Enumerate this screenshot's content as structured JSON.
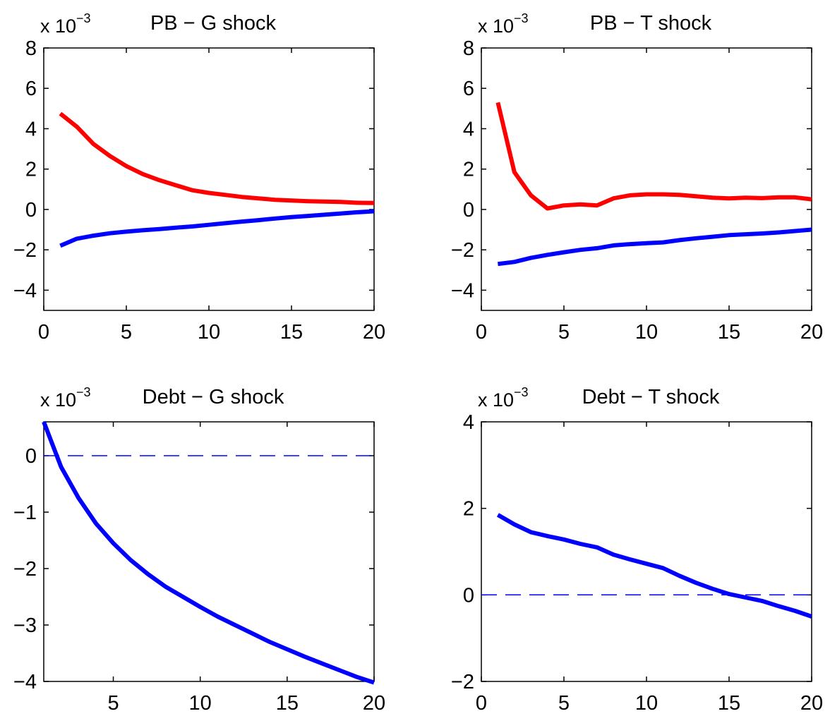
{
  "chart_data": [
    {
      "type": "line",
      "title": "PB − G shock",
      "scale_base": "x 10",
      "scale_exp": "−3",
      "xlabel": "",
      "ylabel": "",
      "xlim": [
        0,
        20
      ],
      "ylim": [
        -5,
        8
      ],
      "xticks": [
        0,
        5,
        10,
        15,
        20
      ],
      "xtick_labels": [
        "0",
        "5",
        "10",
        "15",
        "20"
      ],
      "yticks": [
        -4,
        -2,
        0,
        2,
        4,
        6,
        8
      ],
      "ytick_labels": [
        "−4",
        "−2",
        "0",
        "2",
        "4",
        "6",
        "8"
      ],
      "grid": false,
      "x": [
        1,
        2,
        3,
        4,
        5,
        6,
        7,
        8,
        9,
        10,
        11,
        12,
        13,
        14,
        15,
        16,
        17,
        18,
        19,
        20
      ],
      "series": [
        {
          "color": "#ff0000",
          "style": "solid",
          "values": [
            4.75,
            4.1,
            3.25,
            2.65,
            2.15,
            1.75,
            1.45,
            1.2,
            0.95,
            0.82,
            0.72,
            0.62,
            0.55,
            0.48,
            0.44,
            0.41,
            0.39,
            0.37,
            0.33,
            0.32
          ]
        },
        {
          "color": "#0000ff",
          "style": "solid",
          "values": [
            -1.8,
            -1.45,
            -1.3,
            -1.18,
            -1.1,
            -1.03,
            -0.97,
            -0.9,
            -0.84,
            -0.76,
            -0.68,
            -0.6,
            -0.53,
            -0.45,
            -0.38,
            -0.32,
            -0.26,
            -0.2,
            -0.14,
            -0.09
          ]
        }
      ]
    },
    {
      "type": "line",
      "title": "PB − T shock",
      "scale_base": "x 10",
      "scale_exp": "−3",
      "xlabel": "",
      "ylabel": "",
      "xlim": [
        0,
        20
      ],
      "ylim": [
        -5,
        8
      ],
      "xticks": [
        0,
        5,
        10,
        15,
        20
      ],
      "xtick_labels": [
        "0",
        "5",
        "10",
        "15",
        "20"
      ],
      "yticks": [
        -4,
        -2,
        0,
        2,
        4,
        6,
        8
      ],
      "ytick_labels": [
        "−4",
        "−2",
        "0",
        "2",
        "4",
        "6",
        "8"
      ],
      "grid": false,
      "x": [
        1,
        2,
        3,
        4,
        5,
        6,
        7,
        8,
        9,
        10,
        11,
        12,
        13,
        14,
        15,
        16,
        17,
        18,
        19,
        20
      ],
      "series": [
        {
          "color": "#ff0000",
          "style": "solid",
          "values": [
            5.3,
            1.85,
            0.7,
            0.05,
            0.2,
            0.25,
            0.2,
            0.55,
            0.7,
            0.75,
            0.75,
            0.72,
            0.65,
            0.58,
            0.55,
            0.58,
            0.56,
            0.6,
            0.6,
            0.5
          ]
        },
        {
          "color": "#0000ff",
          "style": "solid",
          "values": [
            -2.7,
            -2.6,
            -2.4,
            -2.25,
            -2.12,
            -2.0,
            -1.92,
            -1.78,
            -1.72,
            -1.67,
            -1.63,
            -1.52,
            -1.43,
            -1.35,
            -1.27,
            -1.23,
            -1.19,
            -1.14,
            -1.07,
            -1.0
          ]
        }
      ]
    },
    {
      "type": "line",
      "title": "Debt − G shock",
      "scale_base": "x 10",
      "scale_exp": "−3",
      "xlabel": "",
      "ylabel": "",
      "xlim": [
        1,
        20
      ],
      "ylim": [
        -4,
        0.6
      ],
      "xticks": [
        5,
        10,
        15,
        20
      ],
      "xtick_labels": [
        "5",
        "10",
        "15",
        "20"
      ],
      "yticks": [
        -4,
        -3,
        -2,
        -1,
        0
      ],
      "ytick_labels": [
        "−4",
        "−3",
        "−2",
        "−1",
        "0"
      ],
      "grid": false,
      "x": [
        1,
        2,
        3,
        4,
        5,
        6,
        7,
        8,
        9,
        10,
        11,
        12,
        13,
        14,
        15,
        16,
        17,
        18,
        19,
        20
      ],
      "series": [
        {
          "color": "#0000ff",
          "style": "solid",
          "values": [
            0.6,
            -0.2,
            -0.75,
            -1.2,
            -1.55,
            -1.85,
            -2.1,
            -2.32,
            -2.5,
            -2.68,
            -2.85,
            -3.0,
            -3.15,
            -3.3,
            -3.43,
            -3.56,
            -3.68,
            -3.8,
            -3.92,
            -4.02
          ]
        },
        {
          "color": "#0000ff",
          "style": "dashed",
          "values": [
            0,
            0,
            0,
            0,
            0,
            0,
            0,
            0,
            0,
            0,
            0,
            0,
            0,
            0,
            0,
            0,
            0,
            0,
            0,
            0
          ]
        }
      ]
    },
    {
      "type": "line",
      "title": "Debt − T shock",
      "scale_base": "x 10",
      "scale_exp": "−3",
      "xlabel": "",
      "ylabel": "",
      "xlim": [
        0,
        20
      ],
      "ylim": [
        -2,
        4
      ],
      "xticks": [
        0,
        5,
        10,
        15,
        20
      ],
      "xtick_labels": [
        "0",
        "5",
        "10",
        "15",
        "20"
      ],
      "yticks": [
        -2,
        0,
        2,
        4
      ],
      "ytick_labels": [
        "−2",
        "0",
        "2",
        "4"
      ],
      "grid": false,
      "x": [
        1,
        2,
        3,
        4,
        5,
        6,
        7,
        8,
        9,
        10,
        11,
        12,
        13,
        14,
        15,
        16,
        17,
        18,
        19,
        20
      ],
      "series": [
        {
          "color": "#0000ff",
          "style": "solid",
          "values": [
            1.85,
            1.63,
            1.45,
            1.36,
            1.28,
            1.18,
            1.1,
            0.93,
            0.82,
            0.72,
            0.62,
            0.44,
            0.28,
            0.14,
            0.02,
            -0.06,
            -0.14,
            -0.26,
            -0.37,
            -0.5
          ]
        },
        {
          "color": "#0000ff",
          "style": "dashed",
          "values": [
            0,
            0,
            0,
            0,
            0,
            0,
            0,
            0,
            0,
            0,
            0,
            0,
            0,
            0,
            0,
            0,
            0,
            0,
            0,
            0
          ]
        }
      ]
    }
  ]
}
